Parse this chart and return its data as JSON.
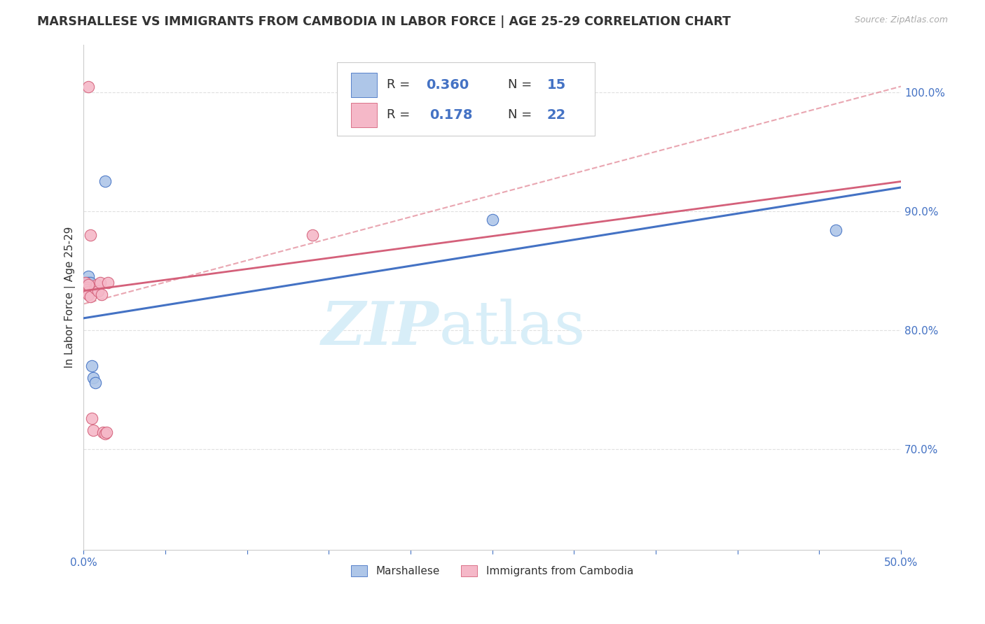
{
  "title": "MARSHALLESE VS IMMIGRANTS FROM CAMBODIA IN LABOR FORCE | AGE 25-29 CORRELATION CHART",
  "source": "Source: ZipAtlas.com",
  "ylabel": "In Labor Force | Age 25-29",
  "xlim": [
    0.0,
    0.5
  ],
  "ylim": [
    0.615,
    1.04
  ],
  "xtick_positions": [
    0.0,
    0.05,
    0.1,
    0.15,
    0.2,
    0.25,
    0.3,
    0.35,
    0.4,
    0.45,
    0.5
  ],
  "xtick_labels_visible": {
    "0.0": "0.0%",
    "0.5": "50.0%"
  },
  "yticks": [
    0.7,
    0.8,
    0.9,
    1.0
  ],
  "ytick_labels": [
    "70.0%",
    "80.0%",
    "90.0%",
    "100.0%"
  ],
  "blue_fill_color": "#aec6e8",
  "pink_fill_color": "#f5b8c8",
  "blue_edge_color": "#4472c4",
  "pink_edge_color": "#d4607a",
  "blue_line_color": "#4472c4",
  "pink_line_color": "#d4607a",
  "dashed_line_color": "#e08090",
  "legend_R_color": "#4472c4",
  "watermark_color": "#d8eef8",
  "grid_color": "#e0e0e0",
  "blue_R": 0.36,
  "blue_N": 15,
  "pink_R": 0.178,
  "pink_N": 22,
  "blue_x": [
    0.001,
    0.001,
    0.002,
    0.002,
    0.003,
    0.003,
    0.004,
    0.004,
    0.005,
    0.006,
    0.007,
    0.013,
    0.25,
    0.46,
    0.005
  ],
  "blue_y": [
    0.835,
    0.84,
    0.838,
    0.84,
    0.845,
    0.84,
    0.838,
    0.84,
    0.77,
    0.76,
    0.756,
    0.925,
    0.893,
    0.884,
    0.836
  ],
  "pink_x": [
    0.001,
    0.001,
    0.002,
    0.002,
    0.003,
    0.003,
    0.004,
    0.005,
    0.006,
    0.007,
    0.008,
    0.009,
    0.01,
    0.011,
    0.012,
    0.013,
    0.014,
    0.015,
    0.003,
    0.004,
    0.14,
    0.003
  ],
  "pink_y": [
    0.84,
    0.835,
    0.836,
    0.834,
    0.832,
    0.83,
    0.828,
    0.726,
    0.716,
    0.835,
    0.838,
    0.833,
    0.84,
    0.83,
    0.714,
    0.713,
    0.714,
    0.84,
    0.838,
    0.88,
    0.88,
    1.005
  ],
  "blue_line_x": [
    0.0,
    0.5
  ],
  "blue_line_y": [
    0.81,
    0.92
  ],
  "pink_line_x": [
    0.0,
    0.5
  ],
  "pink_line_y": [
    0.833,
    0.925
  ],
  "dash_line_x": [
    0.0,
    0.5
  ],
  "dash_line_y": [
    0.822,
    1.005
  ]
}
